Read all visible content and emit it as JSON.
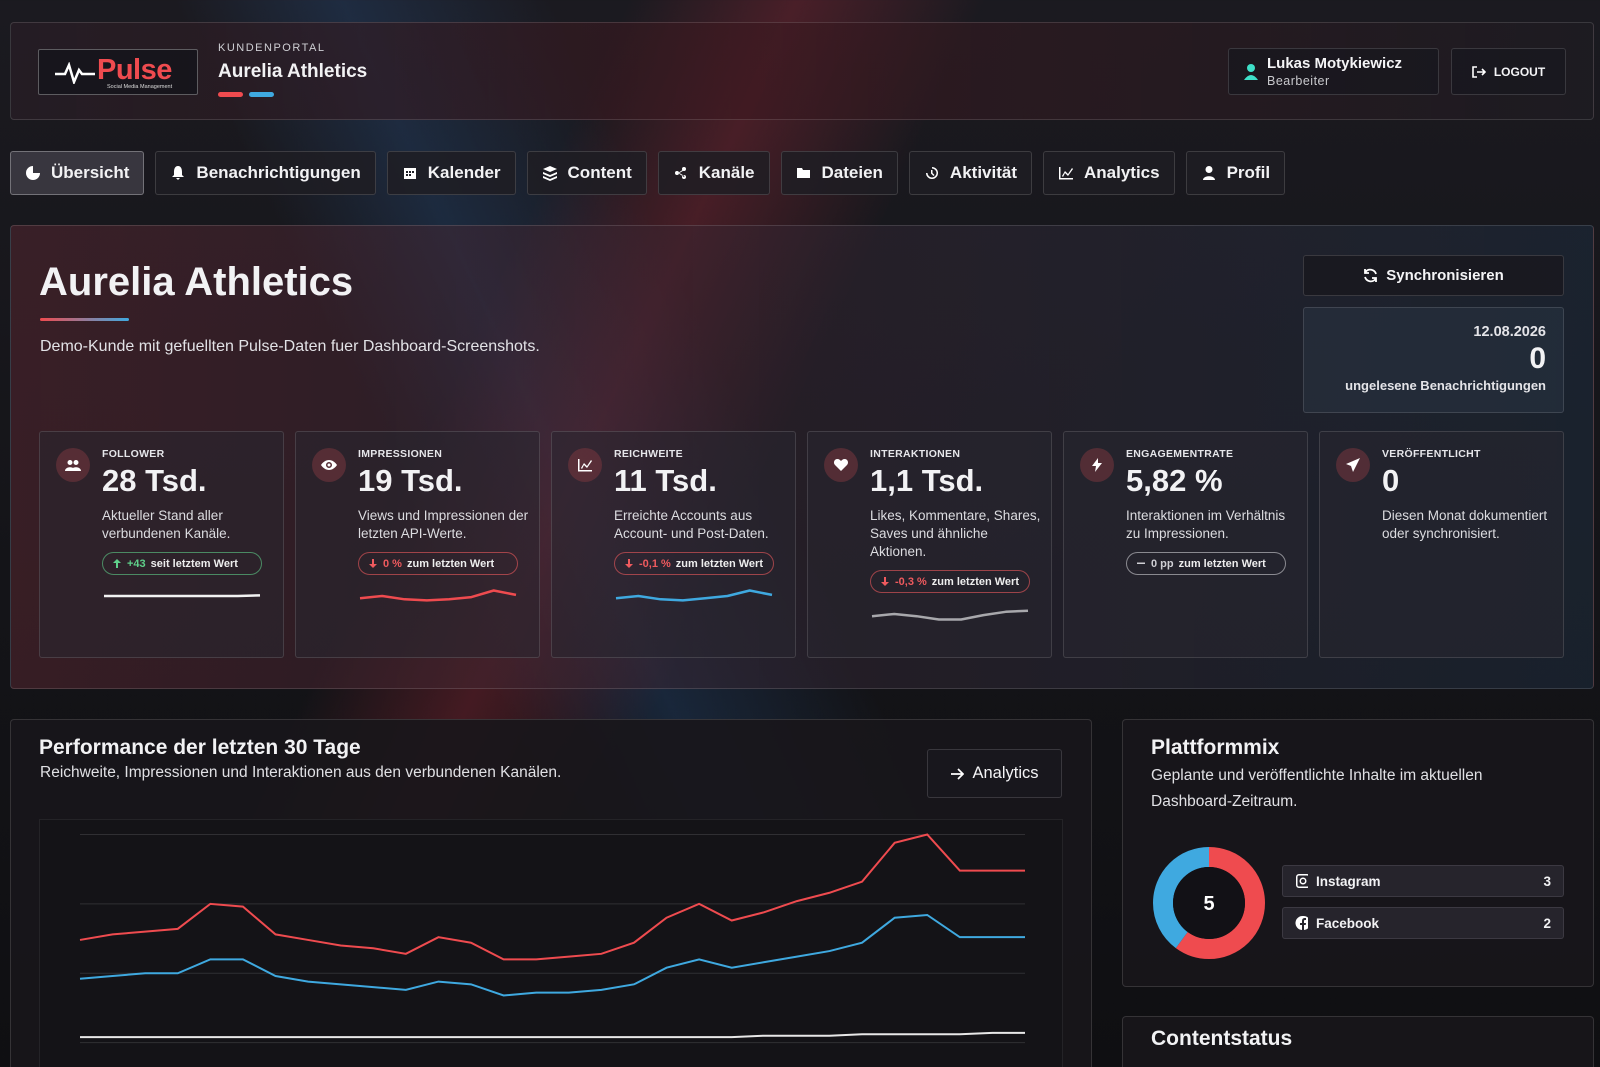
{
  "header": {
    "logo": "Pulse",
    "logo_tagline": "Social Media Management",
    "portal_label": "KUNDENPORTAL",
    "client": "Aurelia Athletics",
    "user_name": "Lukas Motykiewicz",
    "user_role": "Bearbeiter",
    "logout": "LOGOUT"
  },
  "nav": [
    "Übersicht",
    "Benachrichtigungen",
    "Kalender",
    "Content",
    "Kanäle",
    "Dateien",
    "Aktivität",
    "Analytics",
    "Profil"
  ],
  "hero": {
    "title": "Aurelia Athletics",
    "description": "Demo-Kunde mit gefuellten Pulse-Daten fuer Dashboard-Screenshots.",
    "sync_button": "Synchronisieren",
    "date": "12.08.2026",
    "unread_count": 0,
    "unread_label": "ungelesene Benachrichtigungen"
  },
  "kpis": {
    "sparkline_ylim": [
      0,
      10
    ],
    "items": [
      {
        "label": "FOLLOWER",
        "value": "28 Tsd.",
        "description": "Aktueller Stand aller verbundenen Kanäle.",
        "change": {
          "value": "+43",
          "text": "seit letztem Wert",
          "trend": "up"
        },
        "sparkline": {
          "color": "#f2f2f2",
          "values": [
            5,
            5,
            5,
            5,
            5,
            5,
            5,
            5.3
          ]
        }
      },
      {
        "label": "IMPRESSIONEN",
        "value": "19 Tsd.",
        "description": "Views und Impressionen der letzten API-Werte.",
        "change": {
          "value": "0 %",
          "text": "zum letzten Wert",
          "trend": "down"
        },
        "sparkline": {
          "color": "#ef4b4f",
          "values": [
            4,
            5,
            3.5,
            3,
            3.5,
            4.5,
            7.5,
            5.5
          ]
        }
      },
      {
        "label": "REICHWEITE",
        "value": "11 Tsd.",
        "description": "Erreichte Accounts aus Account- und Post-Daten.",
        "change": {
          "value": "-0,1 %",
          "text": "zum letzten Wert",
          "trend": "down"
        },
        "sparkline": {
          "color": "#3fa9e0",
          "values": [
            4,
            5,
            3.5,
            3,
            4,
            5,
            7.5,
            5.5
          ]
        }
      },
      {
        "label": "INTERAKTIONEN",
        "value": "1,1 Tsd.",
        "description": "Likes, Kommentare, Shares, Saves und ähnliche Aktionen.",
        "change": {
          "value": "-0,3 %",
          "text": "zum letzten Wert",
          "trend": "down"
        },
        "sparkline": {
          "color": "#a8a8ac",
          "values": [
            4,
            5,
            4,
            2.5,
            2.5,
            4.5,
            6,
            6.5
          ]
        }
      },
      {
        "label": "ENGAGEMENTRATE",
        "value": "5,82 %",
        "description": "Interaktionen im Verhältnis zu Impressionen.",
        "change": {
          "value": "0 pp",
          "text": "zum letzten Wert",
          "trend": "flat"
        }
      },
      {
        "label": "VERÖFFENTLICHT",
        "value": "0",
        "description": "Diesen Monat dokumentiert oder synchronisiert."
      }
    ]
  },
  "performance": {
    "title": "Performance der letzten 30 Tage",
    "subtitle": "Reichweite, Impressionen und Interaktionen aus den verbundenen Kanälen.",
    "button": "Analytics",
    "chart": {
      "type": "line",
      "ylim": [
        0,
        100
      ],
      "yticks": [
        25,
        50,
        75,
        100
      ],
      "grid": true,
      "series": [
        {
          "color": "#ef4b4f",
          "values": [
            62,
            64,
            65,
            66,
            75,
            74,
            64,
            62,
            60,
            59,
            57,
            63,
            61,
            55,
            55,
            56,
            57,
            61,
            70,
            75,
            69,
            72,
            76,
            79,
            83,
            97,
            100,
            87,
            87,
            87
          ]
        },
        {
          "color": "#3fa9e0",
          "values": [
            48,
            49,
            50,
            50,
            55,
            55,
            49,
            47,
            46,
            45,
            44,
            47,
            46,
            42,
            43,
            43,
            44,
            46,
            52,
            55,
            52,
            54,
            56,
            58,
            61,
            70,
            71,
            63,
            63,
            63
          ]
        },
        {
          "color": "#e8e8e8",
          "values": [
            27,
            27,
            27,
            27,
            27,
            27,
            27,
            27,
            27,
            27,
            27,
            27,
            27,
            27,
            27,
            27,
            27,
            27,
            27,
            27,
            27,
            27.5,
            27.5,
            27.5,
            28,
            28,
            28,
            28,
            28.5,
            28.5
          ]
        }
      ]
    }
  },
  "platform": {
    "title": "Plattformmix",
    "subtitle": "Geplante und veröffentlichte Inhalte im aktuellen Dashboard-Zeitraum.",
    "total": 5,
    "items": [
      {
        "name": "Instagram",
        "value": 3,
        "color": "#ef4b4f"
      },
      {
        "name": "Facebook",
        "value": 2,
        "color": "#3fa9e0"
      }
    ]
  },
  "content_status": {
    "title": "Contentstatus"
  }
}
